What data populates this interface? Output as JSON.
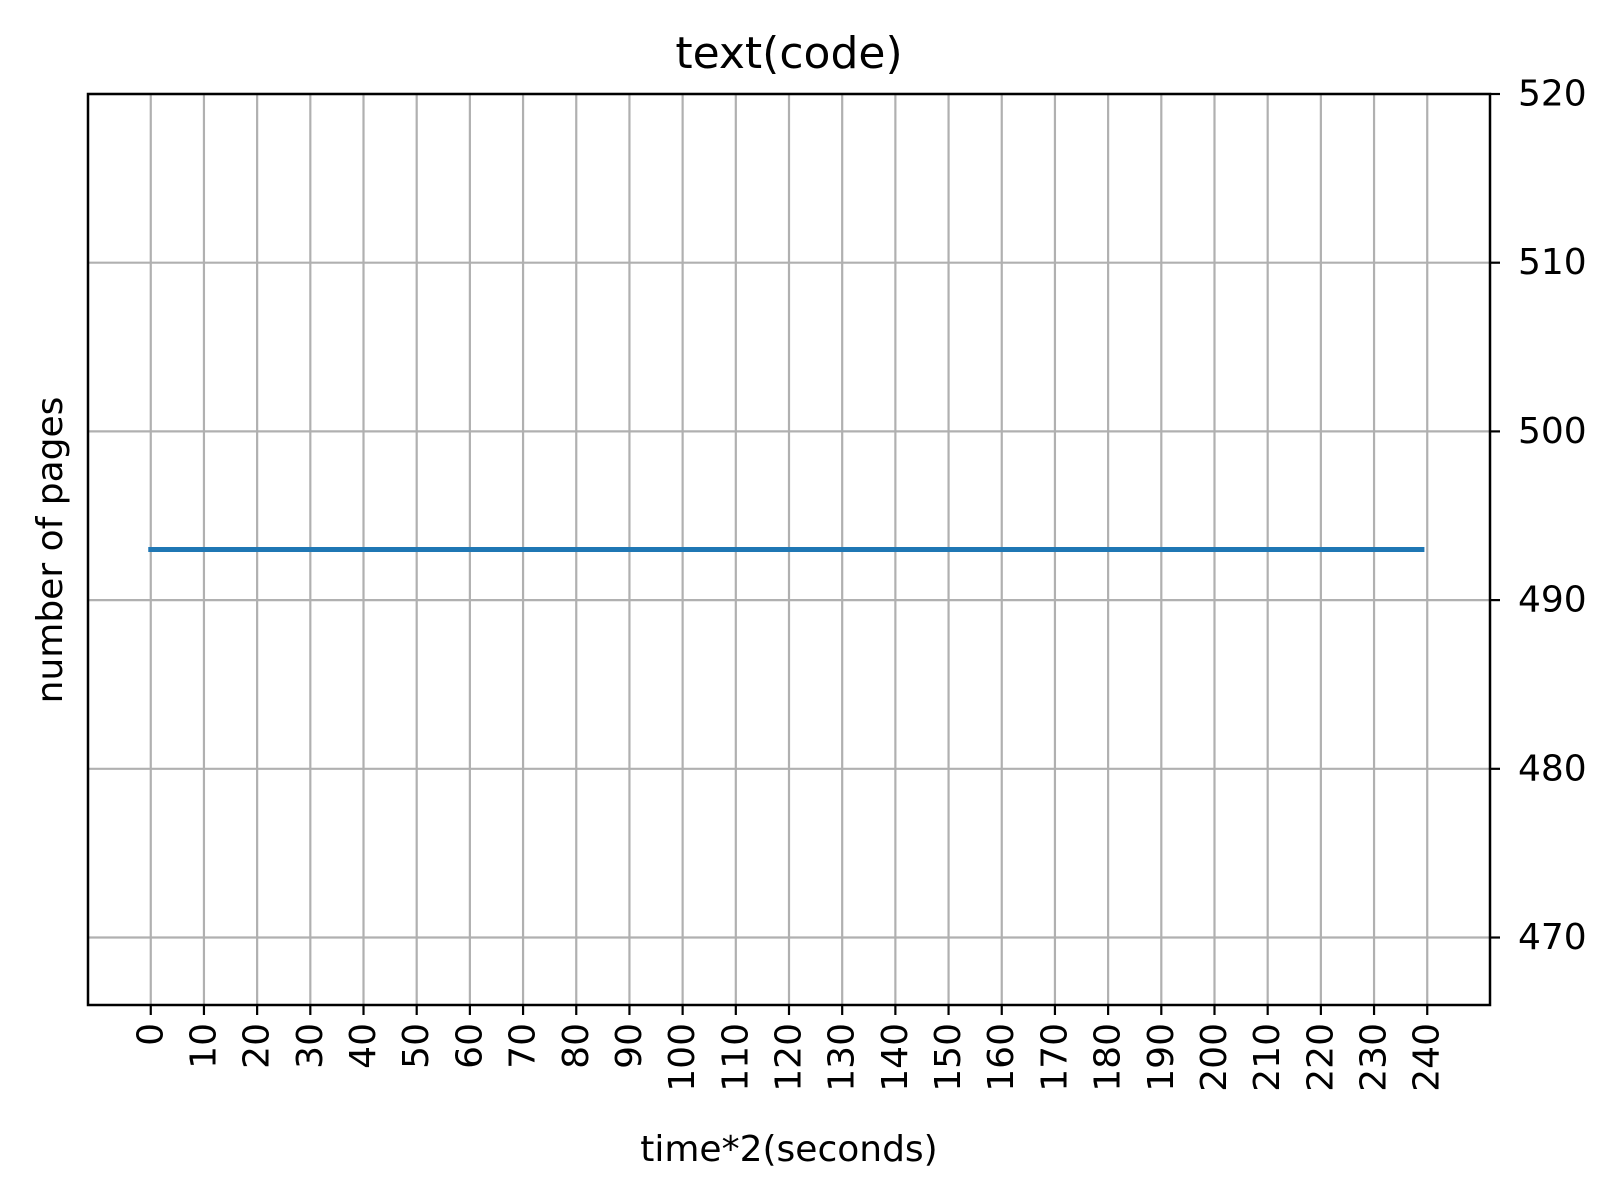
{
  "chart_data": {
    "type": "line",
    "title": "text(code)",
    "xlabel": "time*2(seconds)",
    "ylabel": "number of pages",
    "x_ticks": [
      0,
      10,
      20,
      30,
      40,
      50,
      60,
      70,
      80,
      90,
      100,
      110,
      120,
      130,
      140,
      150,
      160,
      170,
      180,
      190,
      200,
      210,
      220,
      230,
      240
    ],
    "y_ticks": [
      470,
      480,
      490,
      500,
      510,
      520
    ],
    "xlim": [
      -11.8,
      251.8
    ],
    "ylim": [
      466,
      520
    ],
    "y_axis_side": "right",
    "x_tick_rotation": 90,
    "grid": true,
    "series": [
      {
        "color": "#1f77b4",
        "x": [
          0,
          239
        ],
        "values": [
          493,
          493
        ]
      }
    ]
  }
}
